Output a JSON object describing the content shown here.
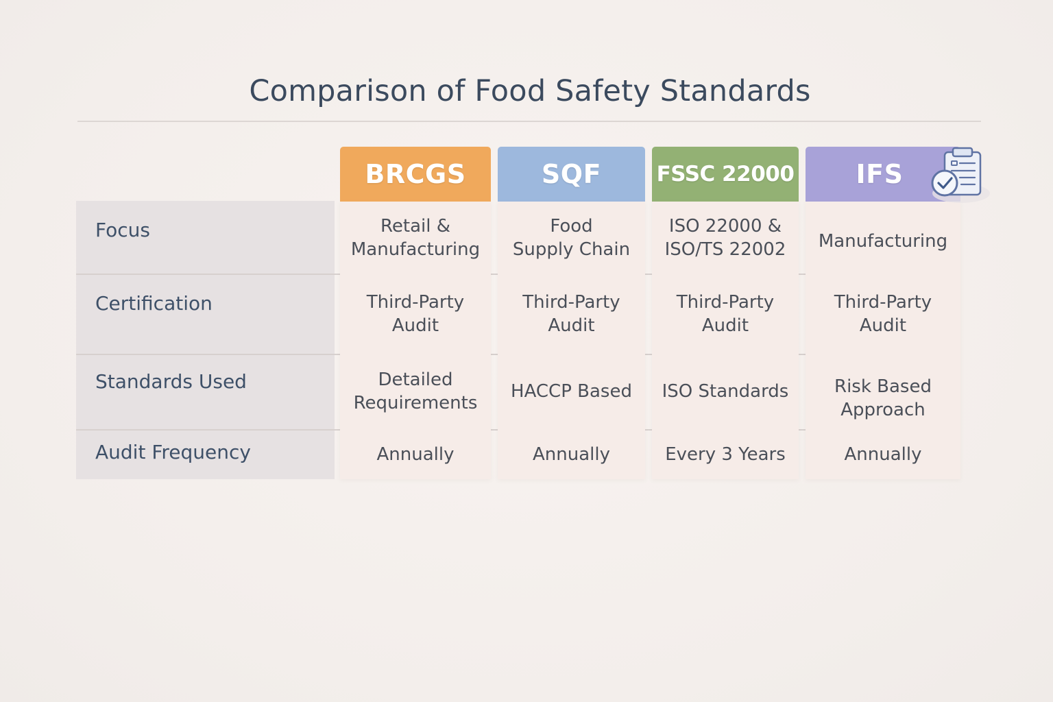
{
  "title": "Comparison of Food Safety Standards",
  "row_labels": [
    "Focus",
    "Certification",
    "Standards Used",
    "Audit Frequency"
  ],
  "standards": [
    {
      "name": "BRCGS",
      "color": "#f0a95c",
      "cells": [
        "Retail &\nManufacturing",
        "Third-Party\nAudit",
        "Detailed\nRequirements",
        "Annually"
      ]
    },
    {
      "name": "SQF",
      "color": "#9db8dd",
      "cells": [
        "Food\nSupply Chain",
        "Third-Party\nAudit",
        "HACCP Based",
        "Annually"
      ]
    },
    {
      "name": "FSSC 22000",
      "color": "#93b174",
      "cells": [
        "ISO 22000 &\nISO/TS 22002",
        "Third-Party\nAudit",
        "ISO Standards",
        "Every 3 Years"
      ]
    },
    {
      "name": "IFS",
      "color": "#a8a2d8",
      "cells": [
        "Manufacturing",
        "Third-Party\nAudit",
        "Risk Based\nApproach",
        "Annually"
      ]
    }
  ],
  "icons": {
    "badge": "clipboard-check-icon"
  }
}
